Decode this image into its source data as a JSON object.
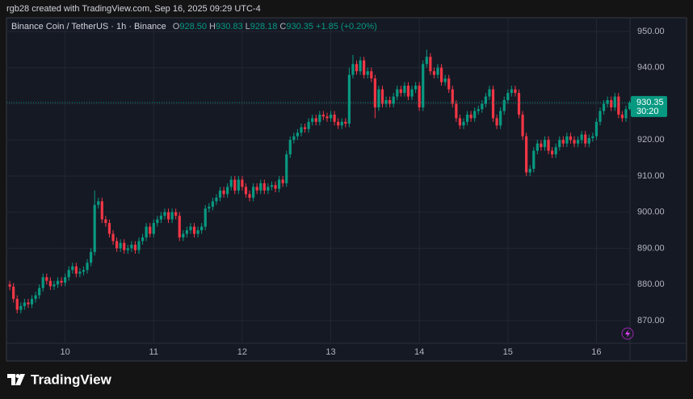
{
  "header": {
    "text": "rgb28 created with TradingView.com, Sep 16, 2025 09:29 UTC-4"
  },
  "chart_data": {
    "type": "candlestick",
    "title": "Binance Coin / TetherUS · 1h · Binance",
    "ohlc_legend": [
      {
        "key": "O",
        "value": "928.50"
      },
      {
        "key": "H",
        "value": "930.83"
      },
      {
        "key": "L",
        "value": "928.18"
      },
      {
        "key": "C",
        "value": "930.35"
      }
    ],
    "change_label": "+1.85 (+0.20%)",
    "last_price_label": "930.35",
    "countdown": "30:20",
    "up_color": "#089981",
    "down_color": "#f23645",
    "open": [
      880,
      879.4,
      876,
      873,
      874,
      875,
      874.5,
      876,
      877,
      879,
      882,
      881,
      879.5,
      880,
      881,
      880.5,
      882,
      884,
      885,
      883,
      883.5,
      884,
      886,
      889,
      902,
      903,
      898,
      897,
      894,
      892,
      890,
      891.5,
      889.5,
      890,
      891,
      889.5,
      892,
      893,
      896,
      894,
      897,
      898,
      899,
      900,
      898,
      900,
      899,
      893,
      894,
      895,
      896,
      894,
      895,
      896,
      901,
      901.5,
      903,
      904,
      906,
      905,
      907,
      909,
      906,
      909,
      907,
      905,
      904,
      907,
      906,
      908,
      906,
      907,
      907.5,
      906.5,
      909,
      908,
      916,
      920,
      921,
      922,
      923.5,
      923,
      925,
      926,
      925,
      927,
      926.5,
      926,
      927,
      925,
      924,
      925,
      924.5,
      938,
      941,
      939,
      942,
      938,
      939,
      937,
      929,
      934,
      930,
      931,
      930,
      932,
      934,
      933,
      935,
      932,
      934,
      935,
      929,
      941,
      943,
      939,
      938,
      940,
      936,
      937,
      934,
      930,
      926,
      924,
      925,
      927,
      926,
      928,
      928.5,
      930,
      932,
      934,
      926,
      924,
      928,
      931,
      933,
      934,
      933,
      927,
      921,
      911,
      912,
      917,
      919,
      918,
      920,
      917,
      916,
      918,
      920,
      919,
      921,
      920,
      919,
      920,
      921.5,
      919,
      920.5,
      921,
      925,
      928,
      930,
      931,
      929,
      932,
      927,
      926,
      928.5
    ],
    "high": [
      881,
      880.4,
      877,
      875,
      876,
      876,
      877,
      878,
      880,
      883,
      883,
      882,
      881,
      882,
      882,
      883,
      885,
      886,
      886,
      884.5,
      885,
      887,
      890,
      906,
      904,
      904,
      899,
      898,
      895,
      893,
      892.5,
      892.5,
      891,
      892,
      892,
      893,
      894,
      897,
      897,
      898,
      899,
      900,
      901,
      901,
      901,
      901,
      900,
      895,
      896,
      897,
      897,
      896,
      897,
      902,
      902.5,
      904,
      905,
      907,
      907,
      908,
      910,
      910,
      910,
      910,
      908,
      906,
      908,
      908,
      909,
      909,
      908,
      908.5,
      908.5,
      910,
      910,
      917,
      921,
      922,
      923,
      924.5,
      924.5,
      926,
      927,
      927,
      928,
      928,
      927.5,
      928,
      928,
      926,
      926,
      926,
      940,
      943.5,
      942,
      943,
      943,
      940,
      940,
      938,
      935,
      935,
      932,
      932,
      933,
      935,
      935,
      936,
      936,
      935,
      936,
      936,
      942,
      945,
      944,
      940,
      941,
      941,
      938,
      938,
      935,
      931,
      927,
      926,
      928,
      928,
      929,
      929.5,
      931,
      933,
      935,
      935,
      927,
      929,
      932,
      934,
      935,
      935,
      934,
      928,
      922,
      913,
      918,
      920,
      920,
      921,
      921,
      918,
      919,
      921,
      921,
      922,
      922,
      921,
      921,
      922.5,
      922.5,
      921.5,
      922,
      926,
      929,
      931,
      932,
      932,
      933,
      933,
      928,
      929.5,
      930.83
    ],
    "low": [
      878.4,
      875,
      872,
      872,
      873,
      873.5,
      873.5,
      875,
      876,
      878,
      880,
      878.5,
      878.5,
      879,
      879.5,
      879.5,
      881,
      883,
      882,
      882,
      882.5,
      883,
      885,
      888,
      901,
      897,
      896,
      893,
      891,
      889,
      889,
      888.5,
      888.5,
      889,
      888.5,
      888.5,
      891,
      892,
      893,
      893,
      896,
      897,
      898,
      897,
      897,
      898,
      892,
      892,
      893,
      894,
      893,
      893,
      894,
      895,
      900,
      900.5,
      902,
      903,
      904,
      904,
      906,
      905,
      905,
      906,
      904,
      903,
      903,
      905,
      905,
      905,
      905,
      906,
      905.5,
      905.5,
      907,
      907,
      915,
      919,
      920,
      921,
      922,
      922,
      924,
      924,
      924,
      925.5,
      925,
      925,
      924,
      923,
      923,
      923.5,
      923.5,
      937,
      938,
      938,
      937,
      937,
      936,
      926,
      928,
      929,
      929,
      929,
      929,
      931,
      932,
      932,
      931,
      931,
      933,
      928,
      928,
      940,
      938,
      937,
      937,
      935,
      935,
      933,
      929,
      925,
      923,
      923,
      924,
      925,
      925,
      927,
      927.5,
      929,
      931,
      925,
      923,
      923,
      927,
      930,
      932,
      932,
      926,
      920,
      910,
      910,
      911,
      916,
      917,
      917,
      916,
      915,
      915,
      917,
      918,
      918,
      919,
      918,
      918,
      919,
      918,
      918,
      919.5,
      920,
      924,
      927,
      929,
      928,
      928,
      926,
      925,
      925,
      928.18
    ],
    "close": [
      879.4,
      876,
      873,
      874,
      875,
      874.5,
      876,
      877,
      879,
      882,
      881,
      879.5,
      880,
      881,
      880.5,
      882,
      884,
      885,
      883,
      883.5,
      884,
      886,
      889,
      902,
      903,
      898,
      897,
      894,
      892,
      890,
      891.5,
      889.5,
      890,
      891,
      889.5,
      892,
      893,
      896,
      894,
      897,
      898,
      899,
      900,
      898,
      900,
      899,
      893,
      894,
      895,
      896,
      894,
      895,
      896,
      901,
      901.5,
      903,
      904,
      906,
      905,
      907,
      909,
      906,
      909,
      907,
      905,
      904,
      907,
      906,
      908,
      906,
      907,
      907.5,
      906.5,
      909,
      908,
      916,
      920,
      921,
      922,
      923.5,
      923,
      925,
      926,
      925,
      927,
      926.5,
      926,
      927,
      925,
      924,
      925,
      924.5,
      938,
      941,
      939,
      942,
      938,
      939,
      937,
      929,
      934,
      930,
      931,
      930,
      932,
      934,
      933,
      935,
      932,
      934,
      935,
      929,
      941,
      943,
      939,
      938,
      940,
      936,
      937,
      934,
      930,
      926,
      924,
      925,
      927,
      926,
      928,
      928.5,
      930,
      932,
      934,
      926,
      924,
      928,
      931,
      933,
      934,
      933,
      927,
      921,
      911,
      912,
      917,
      919,
      918,
      920,
      917,
      916,
      918,
      920,
      919,
      921,
      920,
      919,
      920,
      921.5,
      919,
      920.5,
      921,
      925,
      928,
      930,
      931,
      929,
      932,
      927,
      926,
      928.5,
      930.35
    ],
    "xlim": [
      -0.9,
      168.1
    ],
    "xticks": [
      {
        "value": 15,
        "label": "10"
      },
      {
        "value": 39,
        "label": "11"
      },
      {
        "value": 63,
        "label": "12"
      },
      {
        "value": 87,
        "label": "13"
      },
      {
        "value": 111,
        "label": "14"
      },
      {
        "value": 135,
        "label": "15"
      },
      {
        "value": 159,
        "label": "16"
      }
    ],
    "ylim": [
      858.8,
      953.8
    ],
    "yticks": [
      {
        "value": 870,
        "label": "870.00"
      },
      {
        "value": 880,
        "label": "880.00"
      },
      {
        "value": 890,
        "label": "890.00"
      },
      {
        "value": 900,
        "label": "900.00"
      },
      {
        "value": 910,
        "label": "910.00"
      },
      {
        "value": 920,
        "label": "920.00"
      },
      {
        "value": 930,
        "label": "930.00"
      },
      {
        "value": 940,
        "label": "940.00"
      },
      {
        "value": 950,
        "label": "950.00"
      }
    ],
    "grid": true
  },
  "footer": {
    "brand": "TradingView"
  }
}
